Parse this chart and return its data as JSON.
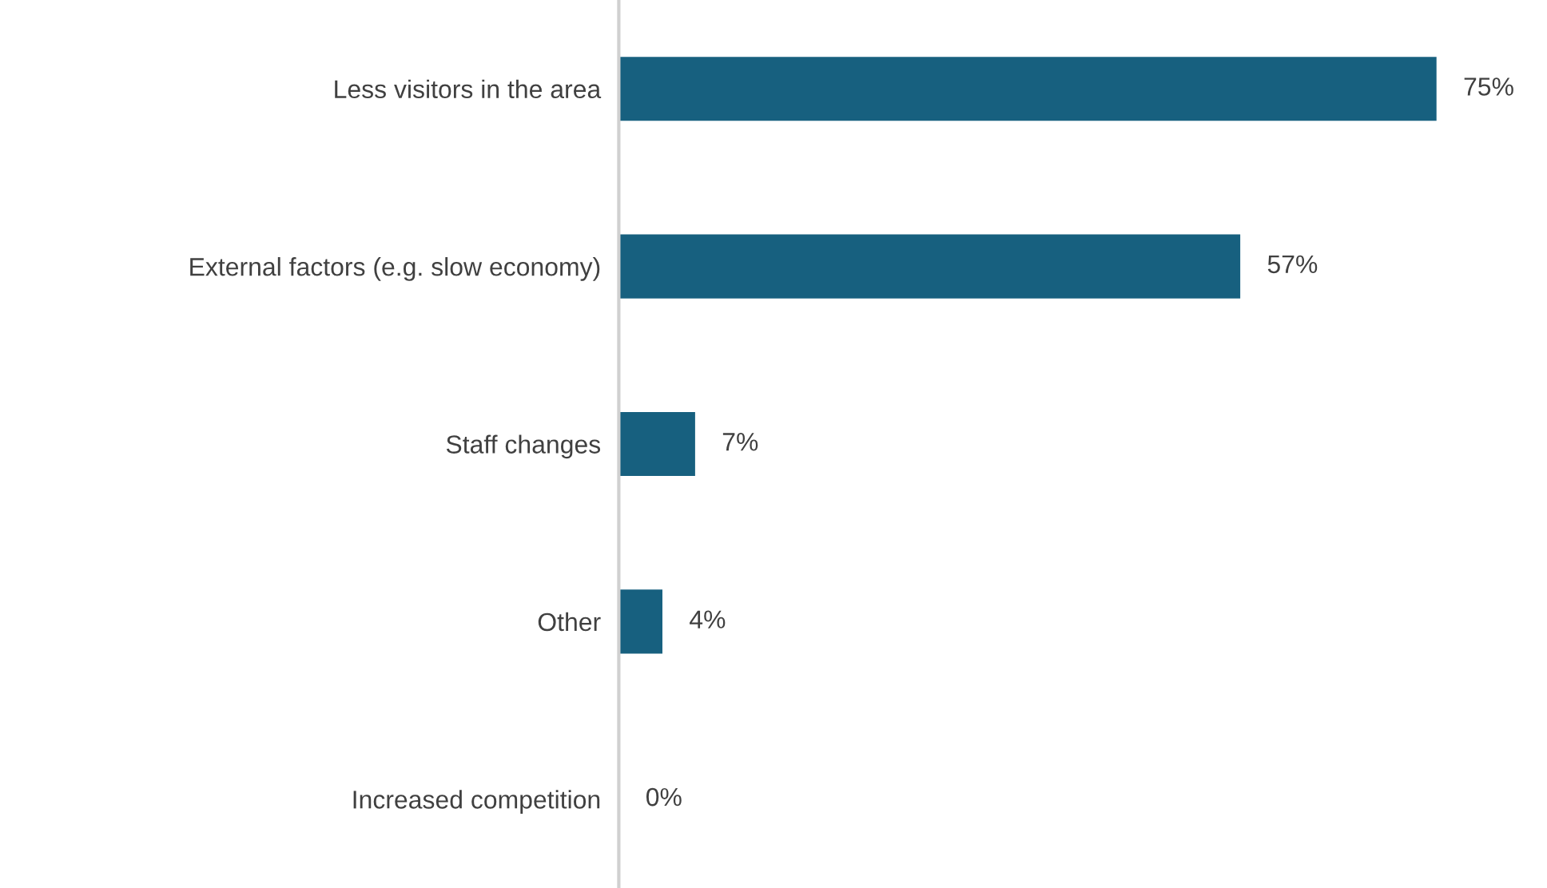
{
  "chart_data": {
    "type": "bar",
    "orientation": "horizontal",
    "categories": [
      "Less visitors in the area",
      "External factors (e.g. slow economy)",
      "Staff changes",
      "Other",
      "Increased competition"
    ],
    "values": [
      75,
      57,
      7,
      4,
      0
    ],
    "value_labels": [
      "75%",
      "57%",
      "7%",
      "4%",
      "0%"
    ],
    "color": "#17607f",
    "grid": false,
    "legend": false
  }
}
